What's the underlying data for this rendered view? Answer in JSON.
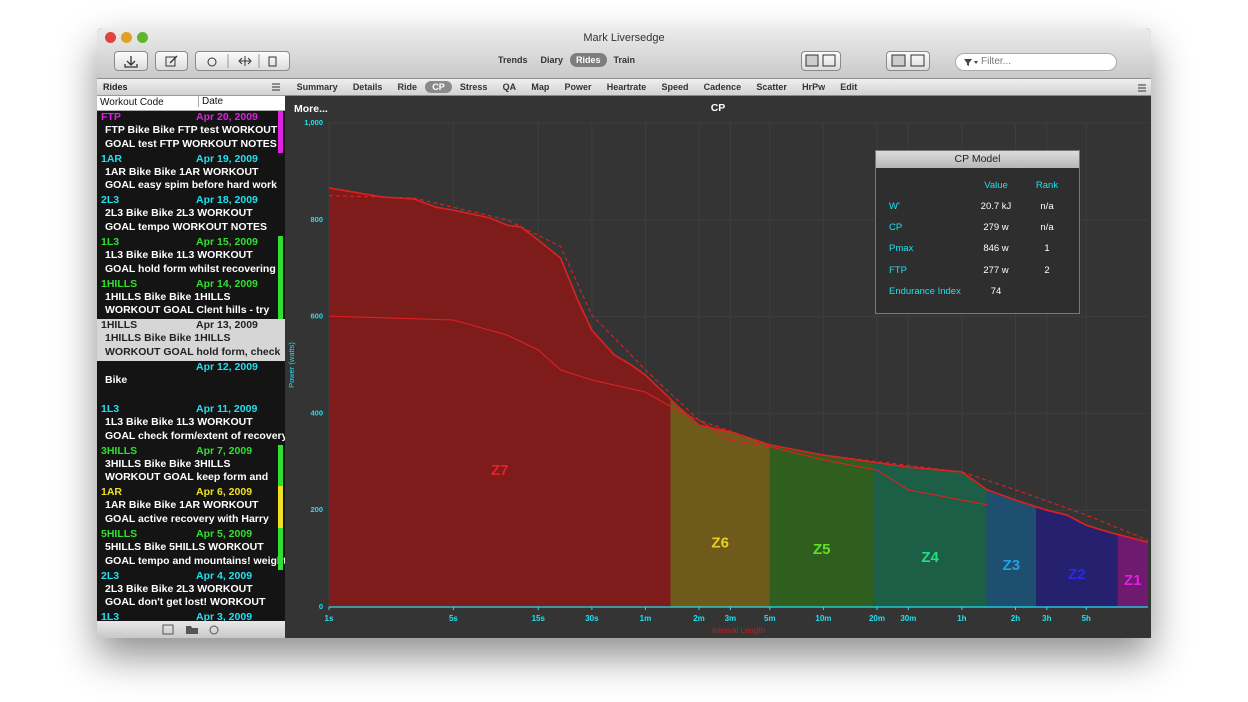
{
  "window": {
    "title": "Mark Liversedge"
  },
  "toolbar": {
    "views": [
      "Trends",
      "Diary",
      "Rides",
      "Train"
    ],
    "active_view": 2,
    "filter": "Filter..."
  },
  "sidebar": {
    "title": "Rides",
    "columns": [
      "Workout Code",
      "Date"
    ],
    "rides": [
      {
        "code": "FTP",
        "date": "Apr 20, 2009",
        "lines": [
          "FTP Bike Bike FTP test WORKOUT",
          "GOAL test FTP  WORKOUT NOTES"
        ],
        "color": "#e020e0",
        "bar": true,
        "selected": false
      },
      {
        "code": "1AR",
        "date": "Apr 19, 2009",
        "lines": [
          "1AR Bike Bike 1AR WORKOUT",
          "GOAL easy spim before hard work"
        ],
        "color": "#20e0f0",
        "bar": false,
        "selected": false
      },
      {
        "code": "2L3",
        "date": "Apr 18, 2009",
        "lines": [
          "2L3 Bike Bike 2L3 WORKOUT",
          "GOAL tempo WORKOUT NOTES"
        ],
        "color": "#20e0f0",
        "bar": false,
        "selected": false
      },
      {
        "code": "1L3",
        "date": "Apr 15, 2009",
        "lines": [
          "1L3 Bike Bike 1L3 WORKOUT",
          "GOAL hold form whilst recovering"
        ],
        "color": "#30e030",
        "bar": true,
        "selected": false
      },
      {
        "code": "1HILLS",
        "date": "Apr 14, 2009",
        "lines": [
          "1HILLS Bike Bike 1HILLS",
          "WORKOUT GOAL Clent hills - try"
        ],
        "color": "#30e030",
        "bar": true,
        "selected": false
      },
      {
        "code": "1HILLS",
        "date": "Apr 13, 2009",
        "lines": [
          "1HILLS Bike Bike 1HILLS",
          "WORKOUT GOAL hold form, check"
        ],
        "color": "#222222",
        "bar": false,
        "selected": true
      },
      {
        "code": null,
        "date": "Apr 12, 2009",
        "lines": [
          "Bike"
        ],
        "color": "#20e0f0",
        "bar": false,
        "selected": false
      },
      {
        "code": "1L3",
        "date": "Apr 11, 2009",
        "lines": [
          "1L3 Bike Bike 1L3 WORKOUT",
          "GOAL check form/extent of recovery"
        ],
        "color": "#20e0f0",
        "bar": false,
        "selected": false
      },
      {
        "code": "3HILLS",
        "date": "Apr 7, 2009",
        "lines": [
          "3HILLS Bike Bike 3HILLS",
          "WORKOUT GOAL keep form and"
        ],
        "color": "#30e030",
        "bar": true,
        "selected": false
      },
      {
        "code": "1AR",
        "date": "Apr 6, 2009",
        "lines": [
          "1AR Bike Bike 1AR WORKOUT",
          "GOAL active recovery with Harry"
        ],
        "color": "#f0e020",
        "bar": true,
        "selected": false
      },
      {
        "code": "5HILLS",
        "date": "Apr 5, 2009",
        "lines": [
          "5HILLS Bike 5HILLS WORKOUT",
          "GOAL tempo and mountains! weight"
        ],
        "color": "#30e030",
        "bar": true,
        "selected": false
      },
      {
        "code": "2L3",
        "date": "Apr 4, 2009",
        "lines": [
          "2L3 Bike Bike 2L3 WORKOUT",
          "GOAL don't get lost! WORKOUT"
        ],
        "color": "#20e0f0",
        "bar": false,
        "selected": false
      },
      {
        "code": "1L3",
        "date": "Apr 3, 2009",
        "lines": [],
        "color": "#20e0f0",
        "bar": false,
        "selected": false
      }
    ]
  },
  "chart_tabs": {
    "items": [
      "Summary",
      "Details",
      "Ride",
      "CP",
      "Stress",
      "QA",
      "Map",
      "Power",
      "Heartrate",
      "Speed",
      "Cadence",
      "Scatter",
      "HrPw",
      "Edit"
    ],
    "active": 3
  },
  "chart_data": {
    "type": "area",
    "title": "CP",
    "more": "More...",
    "ylabel": "Power (watts)",
    "xlabel": "Interval Length",
    "xscale": "log",
    "grid": true,
    "xlim": [
      1,
      40000
    ],
    "ylim": [
      0,
      1000
    ],
    "yticks": [
      0,
      200,
      400,
      600,
      800,
      {
        "value": 1000,
        "label": "1,000"
      }
    ],
    "xticks": [
      {
        "value": 1,
        "label": "1s"
      },
      {
        "value": 5,
        "label": "5s"
      },
      {
        "value": 15,
        "label": "15s"
      },
      {
        "value": 30,
        "label": "30s"
      },
      {
        "value": 60,
        "label": "1m"
      },
      {
        "value": 120,
        "label": "2m"
      },
      {
        "value": 180,
        "label": "3m"
      },
      {
        "value": 300,
        "label": "5m"
      },
      {
        "value": 600,
        "label": "10m"
      },
      {
        "value": 1200,
        "label": "20m"
      },
      {
        "value": 1800,
        "label": "30m"
      },
      {
        "value": 3600,
        "label": "1h"
      },
      {
        "value": 7200,
        "label": "2h"
      },
      {
        "value": 10800,
        "label": "3h"
      },
      {
        "value": 18000,
        "label": "5h"
      }
    ],
    "series": [
      {
        "color": "#e02020",
        "style": "solid",
        "fill": true,
        "x": [
          1,
          2,
          3,
          4,
          5,
          8,
          10,
          12,
          15,
          20,
          25,
          30,
          40,
          50,
          60,
          90,
          120,
          180,
          300,
          600,
          1200,
          1800,
          3600,
          5000,
          7200,
          10800,
          14000,
          18000,
          25000,
          40000
        ],
        "values": [
          866,
          847,
          843,
          826,
          820,
          804,
          789,
          785,
          758,
          721,
          634,
          572,
          521,
          500,
          479,
          417,
          376,
          362,
          335,
          314,
          298,
          289,
          279,
          242,
          221,
          200,
          190,
          169,
          153,
          134
        ]
      },
      {
        "color": "#e02020",
        "style": "dashed",
        "fill": false,
        "x": [
          1,
          3,
          10,
          20,
          30,
          60,
          120,
          300,
          600,
          3600,
          7200,
          18000,
          40000
        ],
        "values": [
          850,
          845,
          800,
          745,
          603,
          490,
          386,
          335,
          314,
          279,
          242,
          190,
          138
        ]
      },
      {
        "color": "#e02020",
        "style": "solid",
        "fill": false,
        "x": [
          1,
          5,
          10,
          15,
          20,
          30,
          60,
          90,
          120,
          180,
          300,
          600,
          1200,
          1800,
          3600,
          5000
        ],
        "values": [
          601,
          593,
          562,
          531,
          490,
          469,
          444,
          407,
          386,
          345,
          331,
          304,
          283,
          242,
          221,
          211
        ]
      }
    ],
    "zones": [
      {
        "name": "Z7",
        "color": "#7e1b1b",
        "label_color": "#e8202a",
        "from": 1,
        "to": 83
      },
      {
        "name": "Z6",
        "color": "#6e5b1c",
        "label_color": "#e8d020",
        "from": 83,
        "to": 300
      },
      {
        "name": "Z5",
        "color": "#2f5e1f",
        "label_color": "#60e020",
        "from": 300,
        "to": 1150
      },
      {
        "name": "Z4",
        "color": "#1d5e46",
        "label_color": "#20e080",
        "from": 1150,
        "to": 4950
      },
      {
        "name": "Z3",
        "color": "#1e4f6e",
        "label_color": "#20a0e8",
        "from": 4950,
        "to": 9400
      },
      {
        "name": "Z2",
        "color": "#26216e",
        "label_color": "#2a2ae8",
        "from": 9400,
        "to": 27000
      },
      {
        "name": "Z1",
        "color": "#6e1a6e",
        "label_color": "#e020e0",
        "from": 27000,
        "to": 40000
      }
    ]
  },
  "cp_model": {
    "title": "CP Model",
    "headers": [
      null,
      "Value",
      "Rank"
    ],
    "rows": [
      [
        "W'",
        "20.7 kJ",
        "n/a"
      ],
      [
        "CP",
        "279 w",
        "n/a"
      ],
      [
        "Pmax",
        "846 w",
        "1"
      ],
      [
        "FTP",
        "277 w",
        "2"
      ],
      [
        "Endurance Index",
        "74",
        null
      ]
    ]
  }
}
